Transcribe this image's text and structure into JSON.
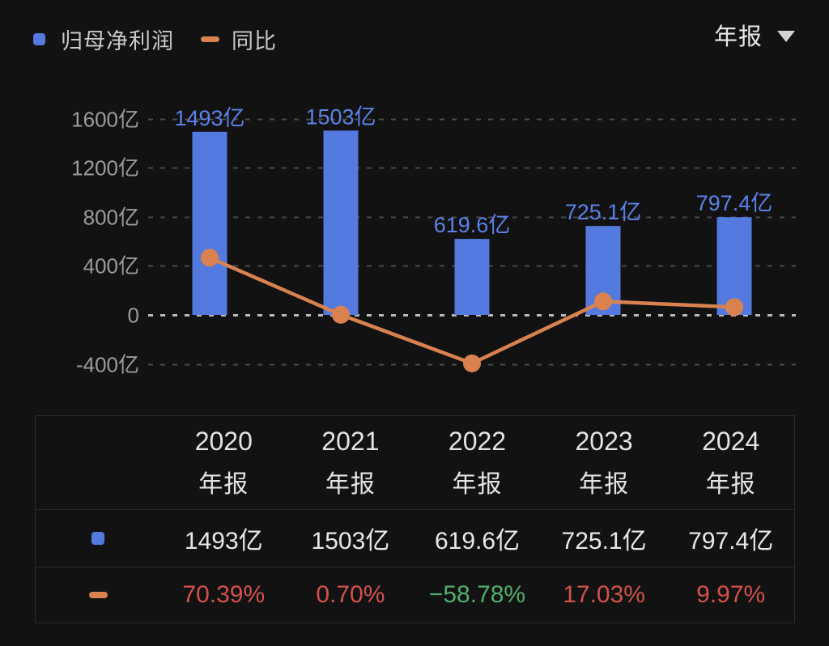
{
  "legend": {
    "items": [
      {
        "label": "归母净利润",
        "marker": "square"
      },
      {
        "label": "同比",
        "marker": "dash"
      }
    ]
  },
  "period_selector": {
    "label": "年报"
  },
  "chart_data": {
    "type": "bar",
    "categories": [
      "2020年报",
      "2021年报",
      "2022年报",
      "2023年报",
      "2024年报"
    ],
    "series": [
      {
        "name": "归母净利润",
        "type": "bar",
        "unit": "亿",
        "values": [
          1493,
          1503,
          619.6,
          725.1,
          797.4
        ],
        "labels": [
          "1493亿",
          "1503亿",
          "619.6亿",
          "725.1亿",
          "797.4亿"
        ],
        "color": "#5479DF",
        "label_color": "#5B82E8"
      },
      {
        "name": "同比",
        "type": "line",
        "unit": "%",
        "values": [
          70.39,
          0.7,
          -58.78,
          17.03,
          9.97
        ],
        "labels": [
          "70.39%",
          "0.70%",
          "−58.78%",
          "17.03%",
          "9.97%"
        ],
        "color": "#D9824F"
      }
    ],
    "y_axis": {
      "ticks": [
        "1600亿",
        "1200亿",
        "800亿",
        "400亿",
        "0",
        "-400亿"
      ],
      "tick_values": [
        1600,
        1200,
        800,
        400,
        0,
        -400
      ],
      "range": [
        -400,
        1600
      ]
    },
    "grid": true,
    "legend_position": "top-left"
  },
  "table": {
    "header": [
      {
        "year": "2020",
        "period": "年报"
      },
      {
        "year": "2021",
        "period": "年报"
      },
      {
        "year": "2022",
        "period": "年报"
      },
      {
        "year": "2023",
        "period": "年报"
      },
      {
        "year": "2024",
        "period": "年报"
      }
    ],
    "rows": [
      {
        "series": "归母净利润",
        "marker": "square",
        "values": [
          {
            "text": "1493亿",
            "color": "#e8e8e8"
          },
          {
            "text": "1503亿",
            "color": "#e8e8e8"
          },
          {
            "text": "619.6亿",
            "color": "#e8e8e8"
          },
          {
            "text": "725.1亿",
            "color": "#e8e8e8"
          },
          {
            "text": "797.4亿",
            "color": "#e8e8e8"
          }
        ]
      },
      {
        "series": "同比",
        "marker": "dash",
        "values": [
          {
            "text": "70.39%",
            "color": "#D2524A"
          },
          {
            "text": "0.70%",
            "color": "#D2524A"
          },
          {
            "text": "−58.78%",
            "color": "#4FAE6A"
          },
          {
            "text": "17.03%",
            "color": "#D2524A"
          },
          {
            "text": "9.97%",
            "color": "#D2524A"
          }
        ]
      }
    ]
  },
  "colors": {
    "background": "#121212",
    "grid": "#4a4a4a",
    "grid_zero": "#b9b9b9",
    "axis_text": "#9b9b9b",
    "table_border": "#2b2b2b",
    "table_text": "#e8e8e8",
    "up": "#D2524A",
    "down": "#4FAE6A"
  }
}
